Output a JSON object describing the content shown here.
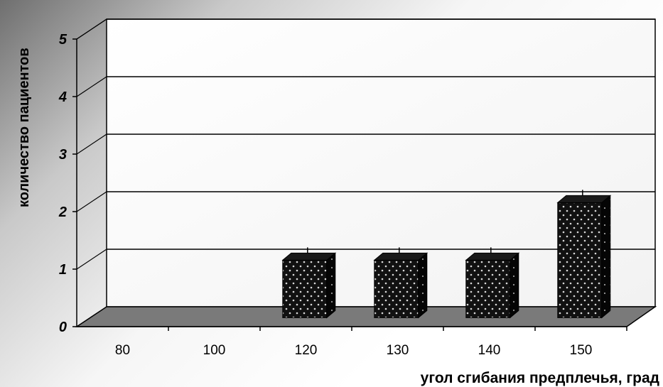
{
  "chart_data": {
    "type": "bar",
    "categories": [
      "80",
      "100",
      "120",
      "130",
      "140",
      "150"
    ],
    "values": [
      0,
      0,
      1,
      1,
      1,
      2
    ],
    "xlabel": "угол сгибания предплечья, град",
    "ylabel": "количество пациентов",
    "ylim": [
      0,
      5
    ],
    "yticks": [
      "0",
      "1",
      "2",
      "3",
      "4",
      "5"
    ],
    "grid": true,
    "legend": false,
    "style": "3d",
    "colors": {
      "bar": "#111111",
      "bar_dots": "#d8d8d8",
      "floor": "#7a7a7a",
      "wall": "#ffffff"
    }
  }
}
